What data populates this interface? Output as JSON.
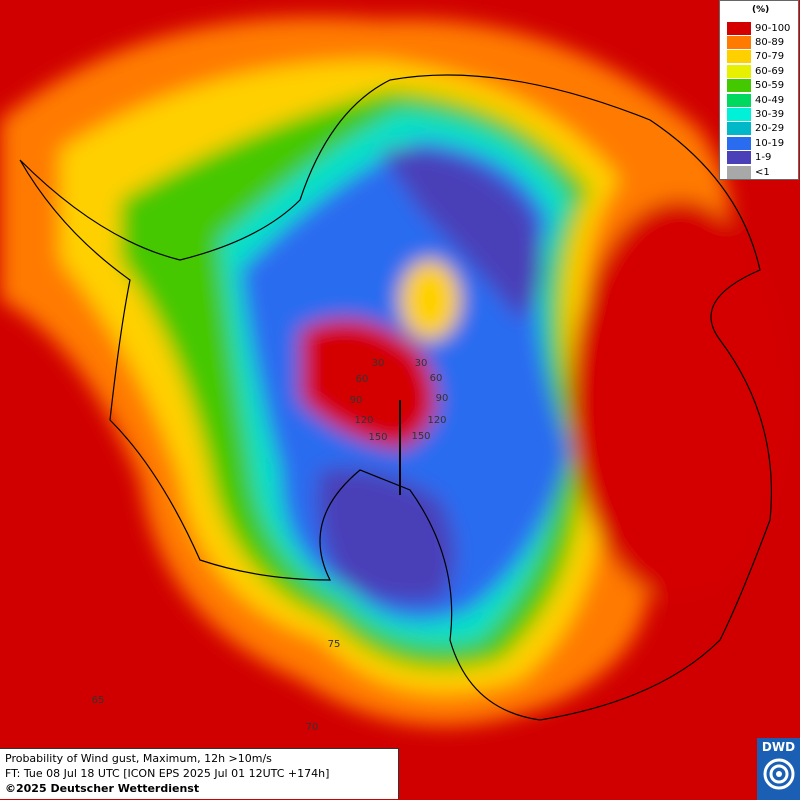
{
  "legend": {
    "unit": "(%)",
    "items": [
      {
        "label": "90-100",
        "color": "#d40000"
      },
      {
        "label": "80-89",
        "color": "#ff7a00"
      },
      {
        "label": "70-79",
        "color": "#ffd000"
      },
      {
        "label": "60-69",
        "color": "#e6f000"
      },
      {
        "label": "50-59",
        "color": "#44c800"
      },
      {
        "label": "40-49",
        "color": "#00d860"
      },
      {
        "label": "30-39",
        "color": "#00f0d8"
      },
      {
        "label": "20-29",
        "color": "#00b8c8"
      },
      {
        "label": "10-19",
        "color": "#2a6cf0"
      },
      {
        "label": "1-9",
        "color": "#4a40b8"
      },
      {
        "label": "<1",
        "color": "#a8a8a8"
      }
    ]
  },
  "caption": {
    "line1": "Probability of Wind gust, Maximum, 12h >10m/s",
    "line2": "FT: Tue 08 Jul 18 UTC [ICON EPS 2025 Jul 01 12UTC +174h]",
    "copyright": "©2025 Deutscher Wetterdienst"
  },
  "logo": "DWD",
  "map_labels": [
    "30",
    "60",
    "90",
    "120",
    "150",
    "30",
    "60",
    "90",
    "120",
    "150",
    "75",
    "70",
    "65"
  ]
}
